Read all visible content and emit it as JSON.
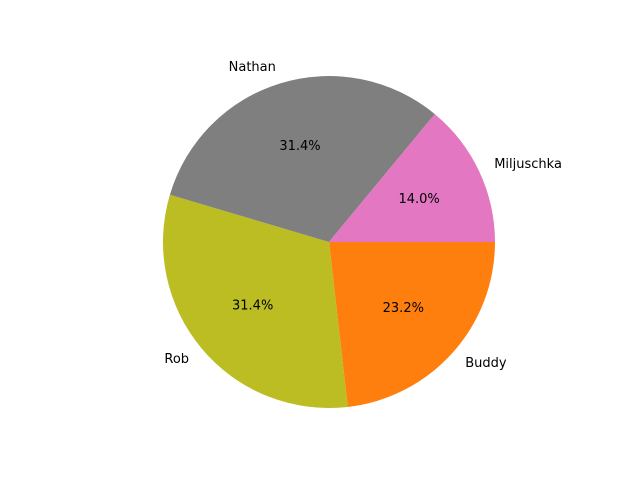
{
  "chart_data": {
    "type": "pie",
    "title": "",
    "slices": [
      {
        "label": "Buddy",
        "value": 23.2,
        "pct_label": "23.2%",
        "color": "#ff7f0e"
      },
      {
        "label": "Rob",
        "value": 31.4,
        "pct_label": "31.4%",
        "color": "#bcbd22"
      },
      {
        "label": "Nathan",
        "value": 31.4,
        "pct_label": "31.4%",
        "color": "#7f7f7f"
      },
      {
        "label": "Miljuschka",
        "value": 14.0,
        "pct_label": "14.0%",
        "color": "#e377c2"
      }
    ],
    "start_angle_deg": 0,
    "direction": "clockwise",
    "legend": "none",
    "grid": false
  }
}
